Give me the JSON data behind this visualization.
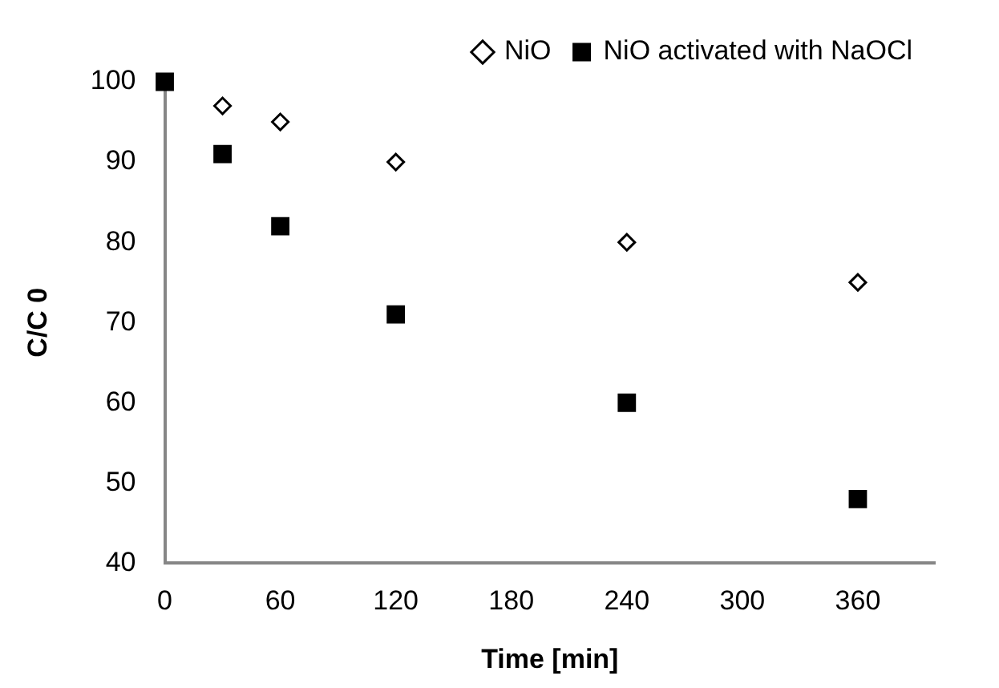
{
  "chart_data": {
    "type": "scatter",
    "xlabel": "Time [min]",
    "ylabel": "C/C 0",
    "xlim": [
      0,
      400
    ],
    "xticks": [
      0,
      60,
      120,
      180,
      240,
      300,
      360
    ],
    "ylim": [
      40,
      100
    ],
    "yticks": [
      40,
      50,
      60,
      70,
      80,
      90,
      100
    ],
    "grid": false,
    "legend": "top right",
    "series": [
      {
        "name": "NiO",
        "color": "#000000",
        "marker": "diamond",
        "x": [
          30,
          60,
          120,
          240,
          360
        ],
        "values": [
          97,
          95,
          90,
          80,
          75
        ]
      },
      {
        "name": "NiO activated with NaOCl",
        "color": "#000000",
        "marker": "square",
        "x": [
          0,
          30,
          60,
          120,
          240,
          360
        ],
        "values": [
          100,
          91,
          82,
          71,
          60,
          48
        ]
      }
    ]
  }
}
